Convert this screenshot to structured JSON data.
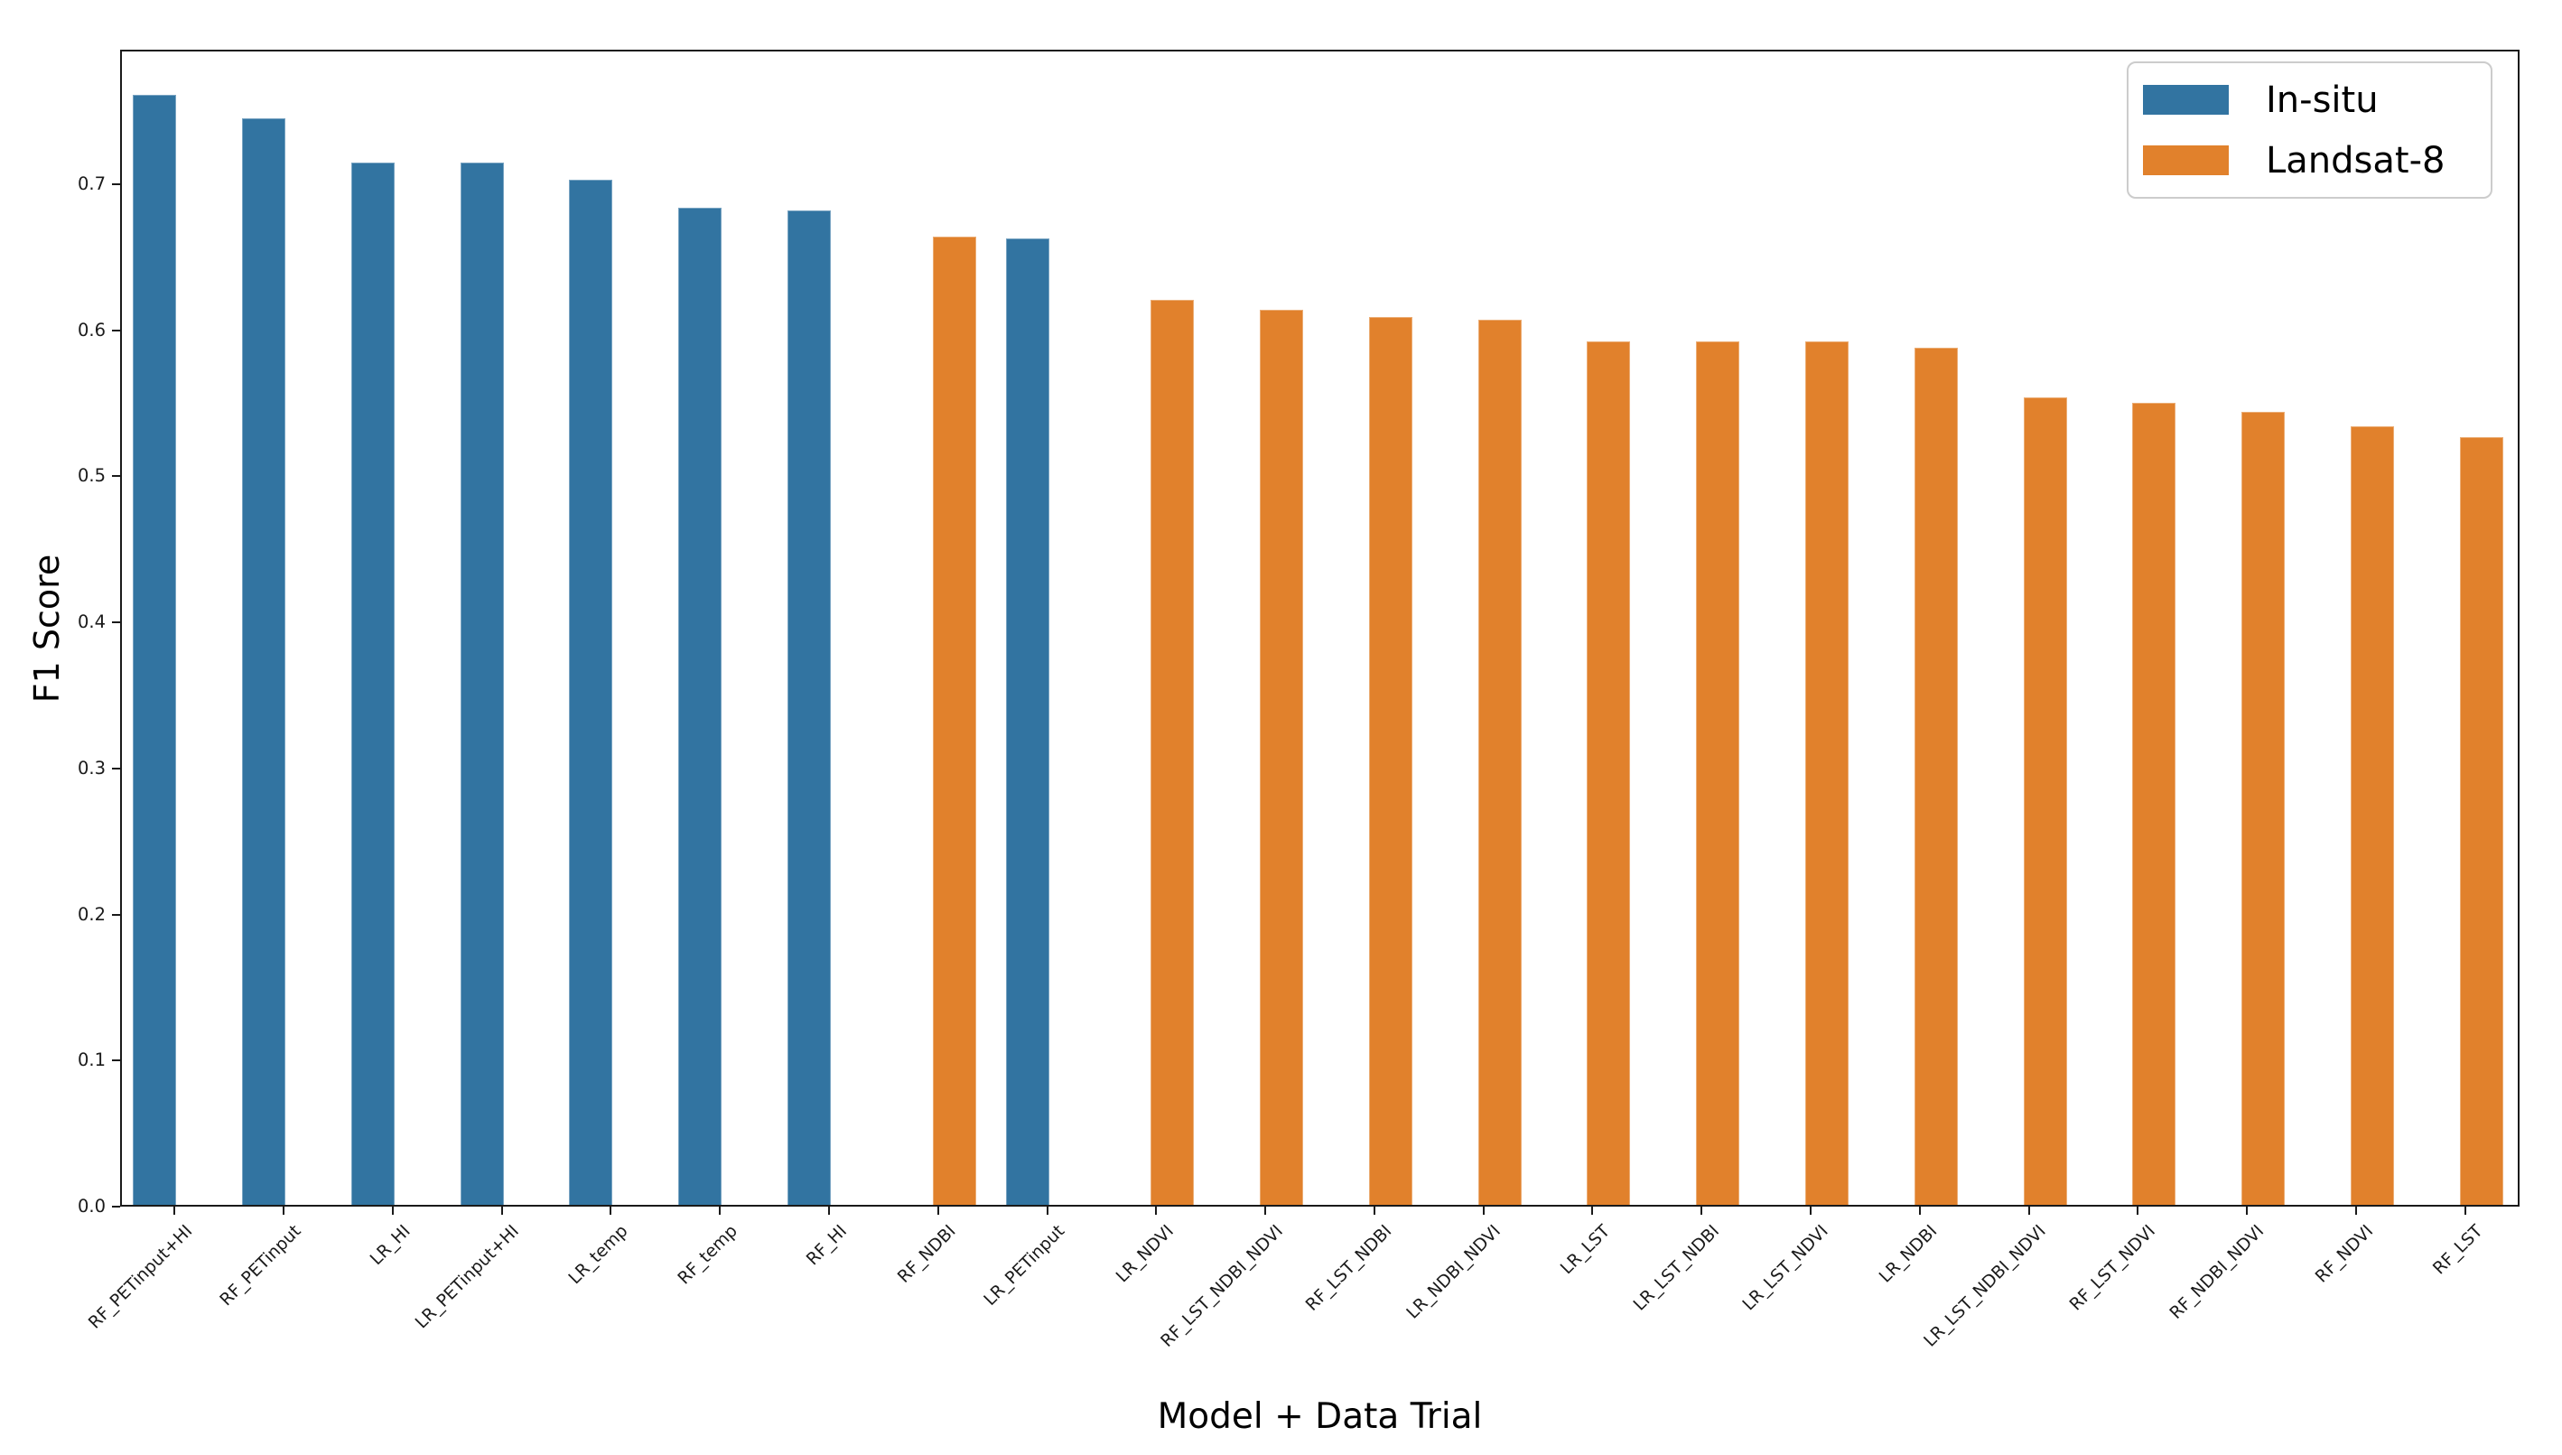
{
  "figure": {
    "background": "#ffffff"
  },
  "chart_data": {
    "type": "bar",
    "title": "",
    "xlabel": "Model + Data Trial",
    "ylabel": "F1 Score",
    "ylim": [
      0,
      0.792
    ],
    "yticks": [
      "0.0",
      "0.1",
      "0.2",
      "0.3",
      "0.4",
      "0.5",
      "0.6",
      "0.7"
    ],
    "grid": false,
    "legend": {
      "position": "upper right",
      "entries": [
        {
          "label": "In-situ",
          "color": "#3274a1"
        },
        {
          "label": "Landsat-8",
          "color": "#e1812c"
        }
      ]
    },
    "series_key": {
      "In-situ": "#3274a1",
      "Landsat-8": "#e1812c"
    },
    "bars": [
      {
        "category": "RF_PETinput+HI",
        "series": "In-situ",
        "value": 0.761
      },
      {
        "category": "RF_PETinput",
        "series": "In-situ",
        "value": 0.745
      },
      {
        "category": "LR_HI",
        "series": "In-situ",
        "value": 0.715
      },
      {
        "category": "LR_PETinput+HI",
        "series": "In-situ",
        "value": 0.715
      },
      {
        "category": "LR_temp",
        "series": "In-situ",
        "value": 0.703
      },
      {
        "category": "RF_temp",
        "series": "In-situ",
        "value": 0.684
      },
      {
        "category": "RF_HI",
        "series": "In-situ",
        "value": 0.682
      },
      {
        "category": "RF_NDBI",
        "series": "Landsat-8",
        "value": 0.664
      },
      {
        "category": "LR_PETinput",
        "series": "In-situ",
        "value": 0.663
      },
      {
        "category": "LR_NDVI",
        "series": "Landsat-8",
        "value": 0.621
      },
      {
        "category": "RF_LST_NDBI_NDVI",
        "series": "Landsat-8",
        "value": 0.614
      },
      {
        "category": "RF_LST_NDBI",
        "series": "Landsat-8",
        "value": 0.609
      },
      {
        "category": "LR_NDBI_NDVI",
        "series": "Landsat-8",
        "value": 0.607
      },
      {
        "category": "LR_LST",
        "series": "Landsat-8",
        "value": 0.592
      },
      {
        "category": "LR_LST_NDBI",
        "series": "Landsat-8",
        "value": 0.592
      },
      {
        "category": "LR_LST_NDVI",
        "series": "Landsat-8",
        "value": 0.592
      },
      {
        "category": "LR_NDBI",
        "series": "Landsat-8",
        "value": 0.588
      },
      {
        "category": "LR_LST_NDBI_NDVI",
        "series": "Landsat-8",
        "value": 0.554
      },
      {
        "category": "RF_LST_NDVI",
        "series": "Landsat-8",
        "value": 0.55
      },
      {
        "category": "RF_NDBI_NDVI",
        "series": "Landsat-8",
        "value": 0.544
      },
      {
        "category": "RF_NDVI",
        "series": "Landsat-8",
        "value": 0.534
      },
      {
        "category": "RF_LST",
        "series": "Landsat-8",
        "value": 0.527
      }
    ]
  }
}
